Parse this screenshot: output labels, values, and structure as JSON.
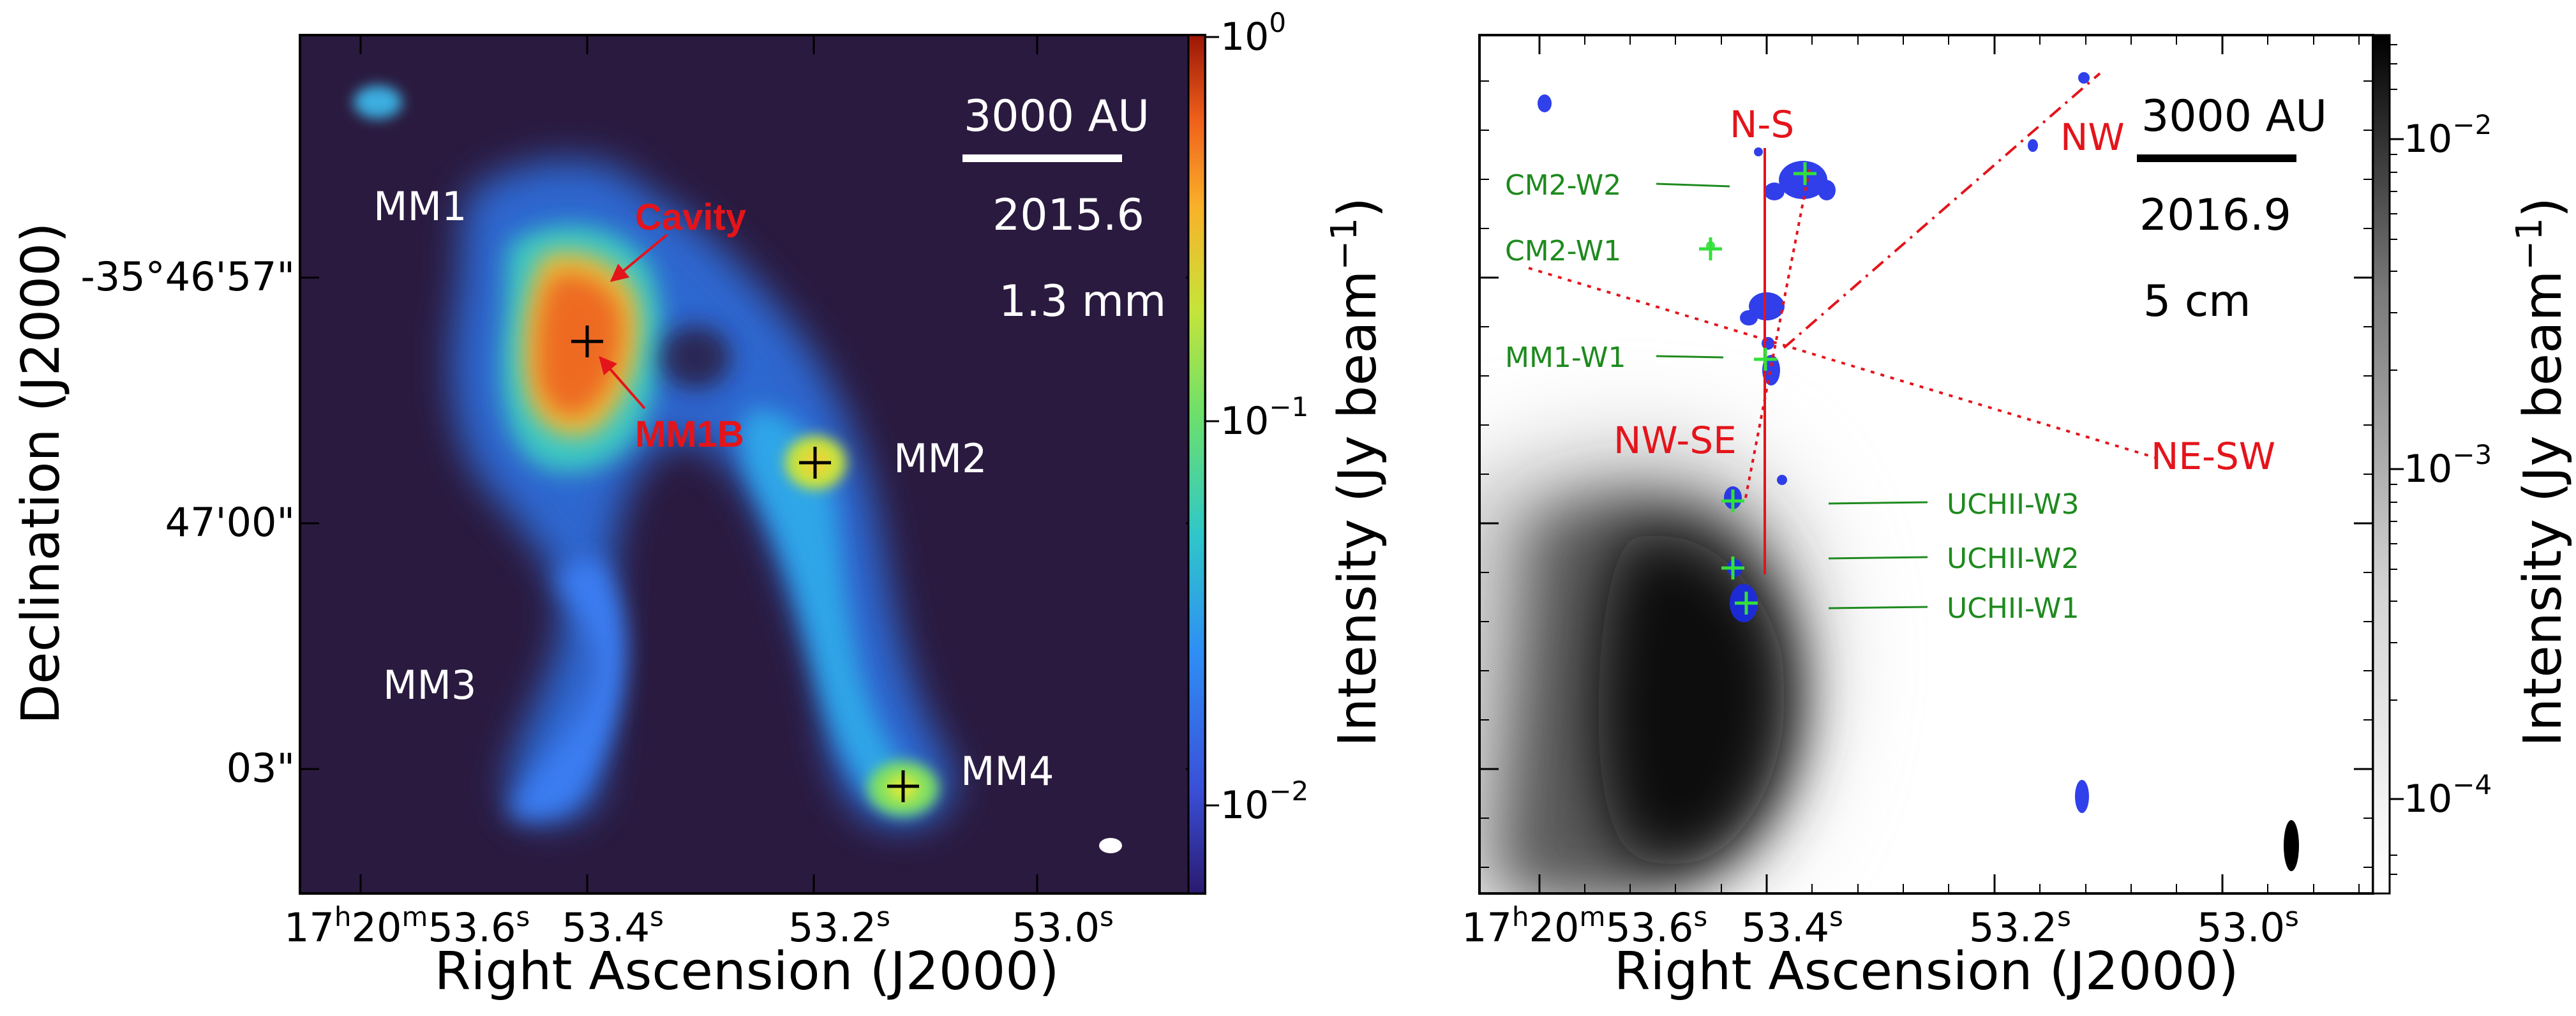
{
  "figure": {
    "left_panel": {
      "scalebar_label": "3000 AU",
      "epoch": "2015.6",
      "wavelength": "1.3 mm",
      "sources": [
        "MM1",
        "MM2",
        "MM3",
        "MM4"
      ],
      "annotations": [
        "Cavity",
        "MM1B"
      ],
      "colorbar": {
        "label": "Intensity (Jy beam⁻¹)",
        "ticks": [
          "10⁰",
          "10⁻¹",
          "10⁻²"
        ],
        "scale": "log",
        "colormap": "turbo",
        "range": [
          0.006,
          1
        ]
      }
    },
    "right_panel": {
      "scalebar_label": "3000 AU",
      "epoch": "2016.9",
      "wavelength": "5 cm",
      "directions": [
        "N-S",
        "NW",
        "NW-SE",
        "NE-SW"
      ],
      "maser_groups": [
        "CM2-W2",
        "CM2-W1",
        "MM1-W1",
        "UCHII-W3",
        "UCHII-W2",
        "UCHII-W1"
      ],
      "colorbar": {
        "label": "Intensity (Jy beam⁻¹)",
        "ticks": [
          "10⁻²",
          "10⁻³",
          "10⁻⁴"
        ],
        "scale": "log",
        "colormap": "gray_r",
        "range": [
          6e-05,
          0.02
        ]
      }
    },
    "axes": {
      "xlabel": "Right Ascension (J2000)",
      "ylabel": "Declination (J2000)",
      "left_xticks": [
        "17h20m53.6s",
        "53.4s",
        "53.2s",
        "53.0s"
      ],
      "right_xticks": [
        "17h20m53.6s",
        "53.4s",
        "53.2s",
        "53.0s"
      ],
      "yticks": [
        "-35°46'57\"",
        "47'00\"",
        "03\""
      ]
    }
  },
  "text": {
    "ylabel": "Declination (J2000)",
    "xlabel_left": "Right Ascension (J2000)",
    "xlabel_right": "Right Ascension (J2000)",
    "ytick_1": "-35°46'57\"",
    "ytick_2": "47'00\"",
    "ytick_3": "03\"",
    "xt_53_4": "53.4",
    "xt_53_2": "53.2",
    "xt_53_0": "53.0",
    "s": "s",
    "h": "h",
    "m": "m",
    "x_17": "17",
    "x_20": "20",
    "x_53_6": "53.6",
    "mm1": "MM1",
    "mm2": "MM2",
    "mm3": "MM3",
    "mm4": "MM4",
    "cavity": "Cavity",
    "mm1b": "MM1B",
    "scale_l": "3000 AU",
    "epoch_l": "2015.6",
    "wave_l": "1.3 mm",
    "scale_r": "3000 AU",
    "epoch_r": "2016.9",
    "wave_r": "5 cm",
    "cb_l_label": "Intensity (Jy beam",
    "cb_r_label": "Intensity (Jy beam",
    "cb_sup": "−1",
    "cb_close": ")",
    "ten": "10",
    "e0": "0",
    "em1": "−1",
    "em2": "−2",
    "em3": "−3",
    "em4": "−4",
    "ns": "N-S",
    "nw": "NW",
    "nwse": "NW-SE",
    "nesw": "NE-SW",
    "cm2w2": "CM2-W2",
    "cm2w1": "CM2-W1",
    "mm1w1": "MM1-W1",
    "ucw3": "UCHII-W3",
    "ucw2": "UCHII-W2",
    "ucw1": "UCHII-W1"
  }
}
